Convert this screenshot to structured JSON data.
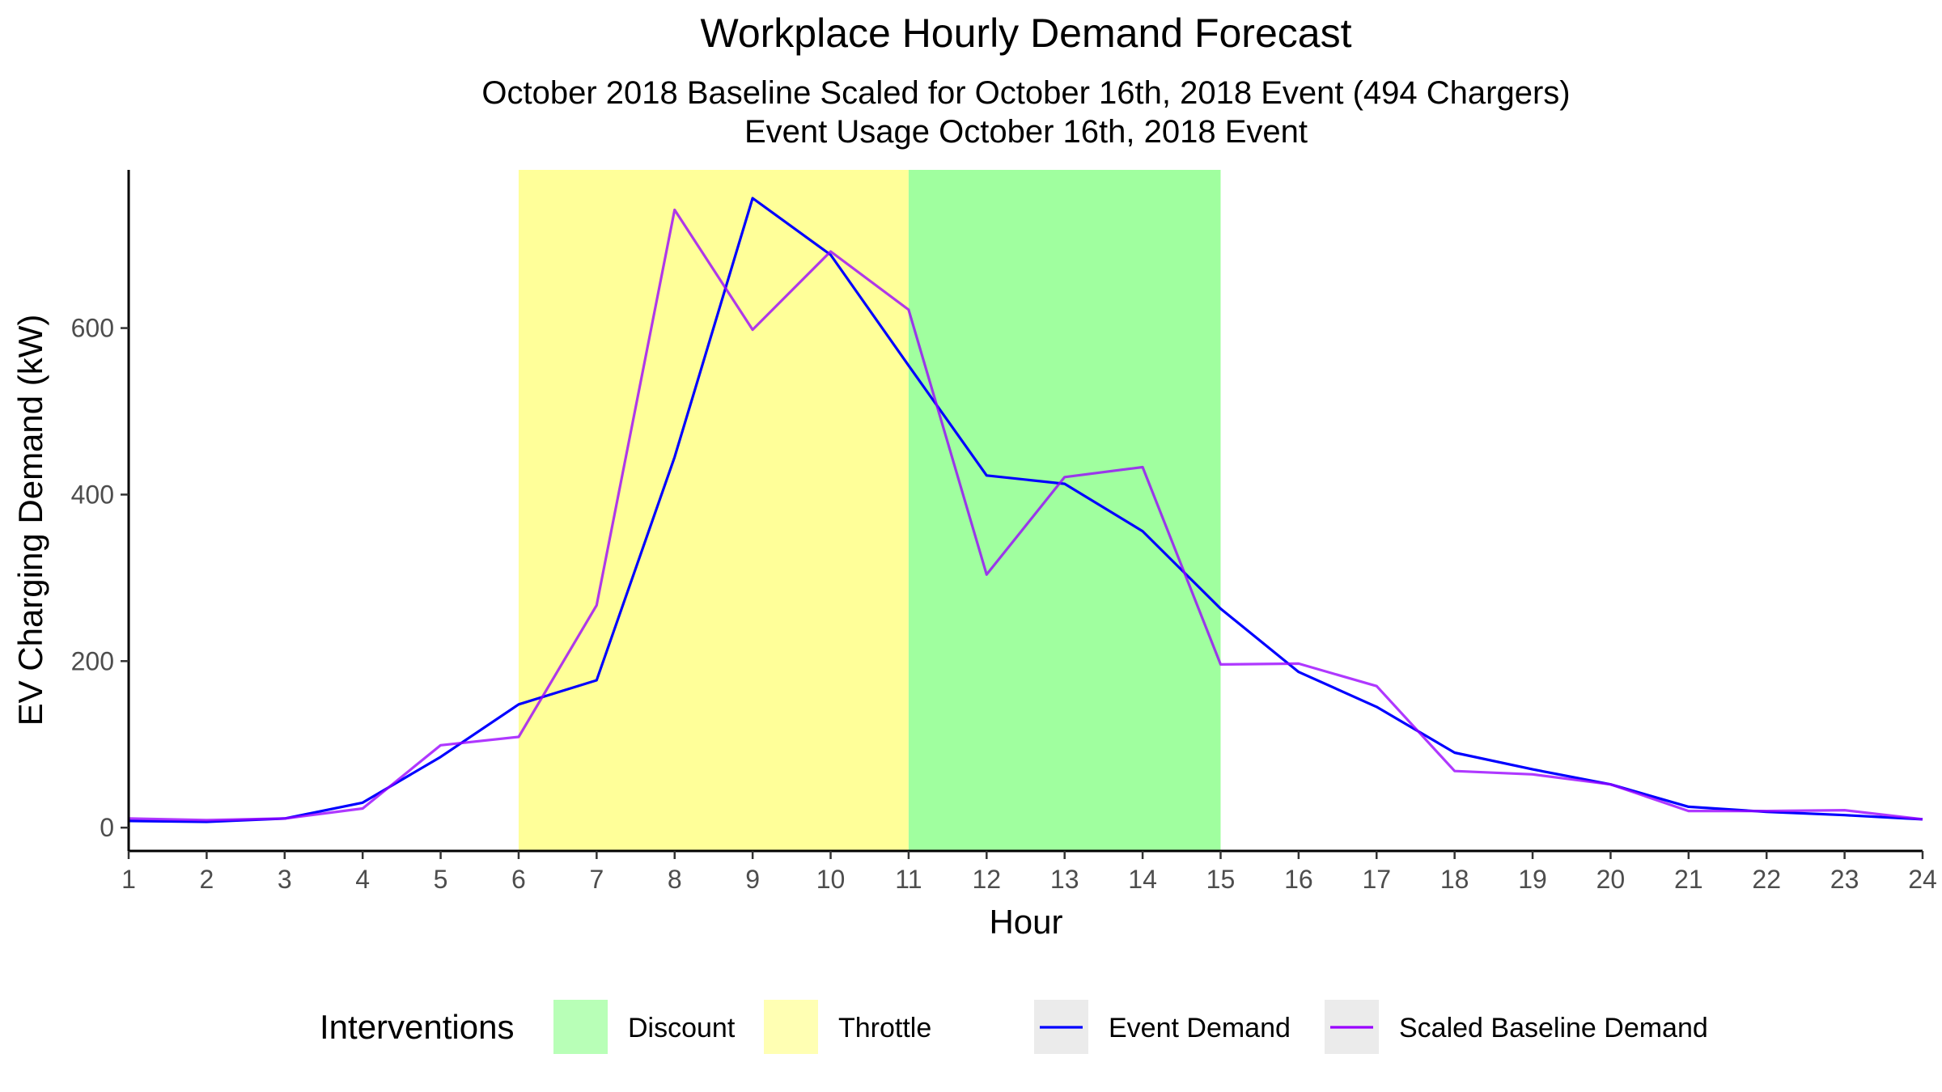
{
  "chart_data": {
    "type": "line",
    "title": "Workplace Hourly Demand Forecast",
    "subtitle_lines": [
      "October 2018 Baseline Scaled for October 16th, 2018 Event (494 Chargers)",
      "Event Usage October 16th, 2018 Event"
    ],
    "xlabel": "Hour",
    "ylabel": "EV Charging Demand (kW)",
    "xlim": [
      1,
      24
    ],
    "ylim": [
      -28,
      790
    ],
    "x": [
      1,
      2,
      3,
      4,
      5,
      6,
      7,
      8,
      9,
      10,
      11,
      12,
      13,
      14,
      15,
      16,
      17,
      18,
      19,
      20,
      21,
      22,
      23,
      24
    ],
    "x_ticks": [
      "1",
      "2",
      "3",
      "4",
      "5",
      "6",
      "7",
      "8",
      "9",
      "10",
      "11",
      "12",
      "13",
      "14",
      "15",
      "16",
      "17",
      "18",
      "19",
      "20",
      "21",
      "22",
      "23",
      "24"
    ],
    "y_ticks": [
      0,
      200,
      400,
      600
    ],
    "grid": false,
    "intervals": [
      {
        "name": "Throttle",
        "start": 6,
        "end": 11,
        "color": "#ffff99"
      },
      {
        "name": "Discount",
        "start": 11,
        "end": 15,
        "color": "#a0ff9f"
      }
    ],
    "series": [
      {
        "name": "Event Demand",
        "color": "#0000ff",
        "values": [
          8,
          7,
          11,
          30,
          85,
          148,
          177,
          445,
          756,
          688,
          555,
          423,
          413,
          356,
          263,
          187,
          145,
          90,
          70,
          52,
          25,
          19,
          15,
          10
        ]
      },
      {
        "name": "Scaled Baseline Demand",
        "color": "#9900ff",
        "values": [
          11,
          9,
          11,
          23,
          99,
          109,
          267,
          742,
          598,
          692,
          622,
          304,
          421,
          433,
          196,
          197,
          170,
          68,
          64,
          52,
          20,
          20,
          21,
          10
        ]
      }
    ],
    "legend": {
      "title": "Interventions",
      "position": "bottom",
      "items": [
        {
          "label": "Discount",
          "kind": "fill",
          "color": "#a0ff9f"
        },
        {
          "label": "Throttle",
          "kind": "fill",
          "color": "#ffff99"
        },
        {
          "label": "Event Demand",
          "kind": "line",
          "color": "#0000ff"
        },
        {
          "label": "Scaled Baseline Demand",
          "kind": "line",
          "color": "#9900ff"
        }
      ]
    }
  }
}
